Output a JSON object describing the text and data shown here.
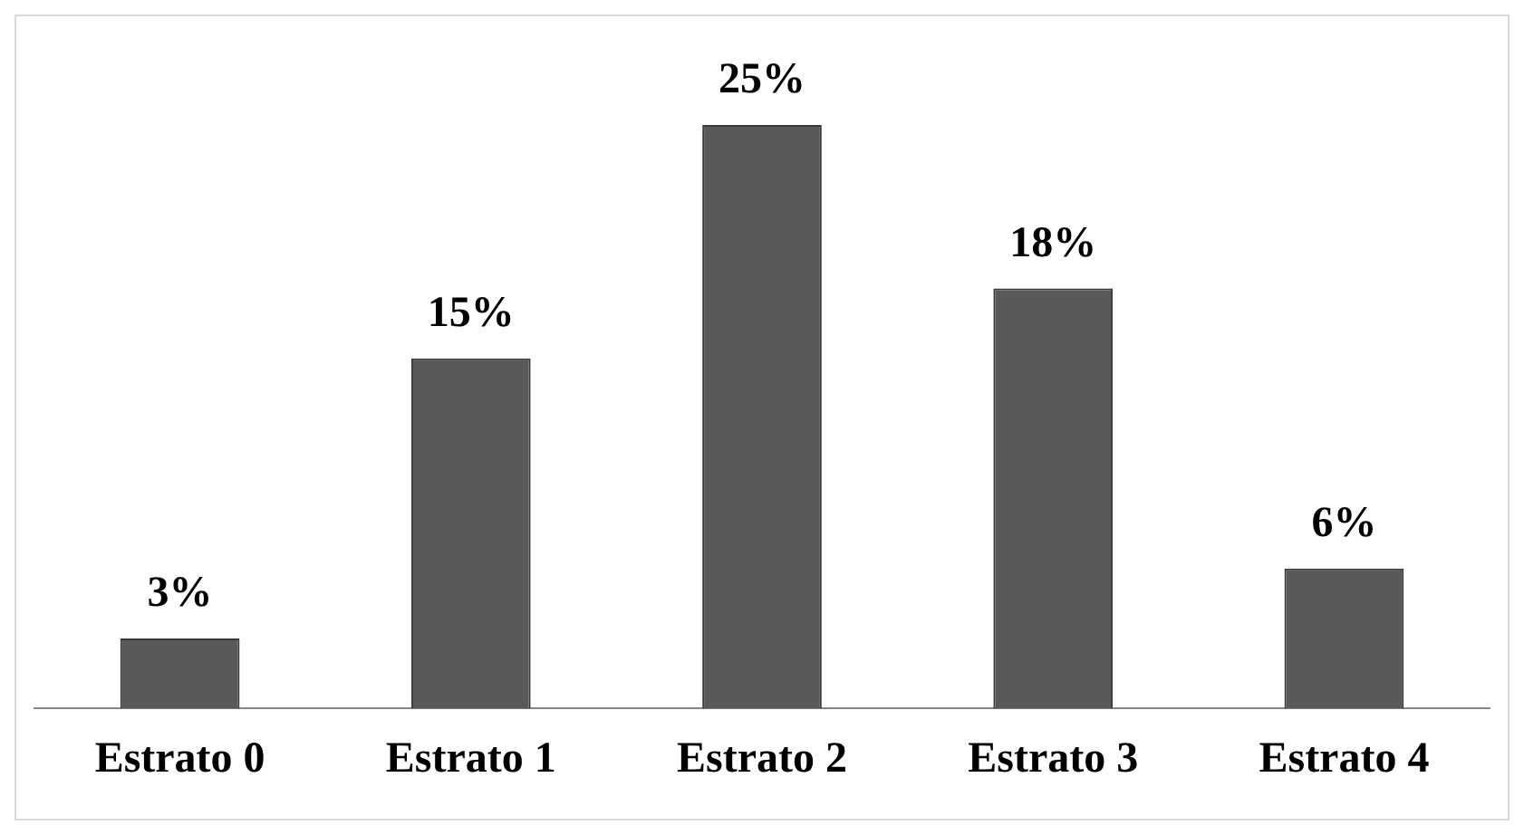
{
  "chart_data": {
    "type": "bar",
    "categories": [
      "Estrato 0",
      "Estrato 1",
      "Estrato 2",
      "Estrato 3",
      "Estrato 4"
    ],
    "values": [
      3,
      15,
      25,
      18,
      6
    ],
    "value_labels": [
      "3%",
      "15%",
      "25%",
      "18%",
      "6%"
    ],
    "color": "#595959"
  }
}
